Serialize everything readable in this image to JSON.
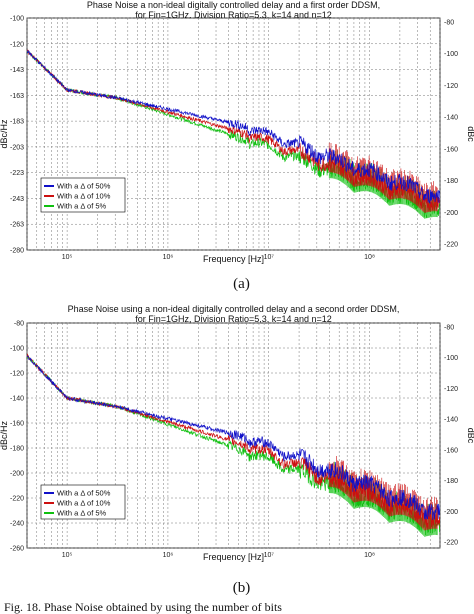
{
  "chart_data": [
    {
      "type": "line",
      "title": "Phase Noise a non-ideal digitally controlled delay and a first order DDSM,",
      "subtitle": "for Fin=1GHz, Division Ratio=5,3, k=14 and n=12",
      "xlabel": "Frequency [Hz]",
      "ylabel_left": "dBc/Hz",
      "ylabel_right": "dBc",
      "xscale": "log",
      "x_ticks": [
        "10⁵",
        "10⁶",
        "10⁷",
        "10⁸"
      ],
      "xlim": [
        40000,
        500000000
      ],
      "ylim_left": [
        -280,
        -80
      ],
      "y_ticks_left": [
        "-100",
        "-120",
        "-143",
        "-163",
        "-183",
        "-203",
        "-223",
        "-243",
        "-263",
        "-280"
      ],
      "y_ticks_right": [
        "-80",
        "-100",
        "-120",
        "-140",
        "-160",
        "-180",
        "-200",
        "-220"
      ],
      "grid": true,
      "legend_position": "bottom-left",
      "panel_label": "(a)",
      "series": [
        {
          "name": "With a Δ of 50%",
          "color": "#1010c8"
        },
        {
          "name": "With a Δ of 10%",
          "color": "#cc1010"
        },
        {
          "name": "With a Δ of 5%",
          "color": "#10c010"
        }
      ]
    },
    {
      "type": "line",
      "title": "Phase Noise using a non-ideal digitally controlled delay and a second order DDSM,",
      "subtitle": "for Fin=1GHz, Division Ratio=5,3, k=14 and n=12",
      "xlabel": "Frequency [Hz]",
      "ylabel_left": "dBc/Hz",
      "ylabel_right": "dBc",
      "xscale": "log",
      "x_ticks": [
        "10⁵",
        "10⁶",
        "10⁷",
        "10⁸"
      ],
      "xlim": [
        40000,
        500000000
      ],
      "ylim_left": [
        -260,
        -80
      ],
      "y_ticks_left": [
        "-80",
        "-100",
        "-120",
        "-140",
        "-160",
        "-180",
        "-200",
        "-220",
        "-240",
        "-260"
      ],
      "y_ticks_right": [
        "-80",
        "-100",
        "-120",
        "-140",
        "-160",
        "-180",
        "-200",
        "-220"
      ],
      "grid": true,
      "legend_position": "bottom-left",
      "panel_label": "(b)",
      "series": [
        {
          "name": "With a Δ of 50%",
          "color": "#1010c8"
        },
        {
          "name": "With a Δ of 10%",
          "color": "#cc1010"
        },
        {
          "name": "With a Δ of 5%",
          "color": "#10c010"
        }
      ]
    }
  ],
  "caption": "Fig. 18. Phase Noise obtained by using the number of bits"
}
